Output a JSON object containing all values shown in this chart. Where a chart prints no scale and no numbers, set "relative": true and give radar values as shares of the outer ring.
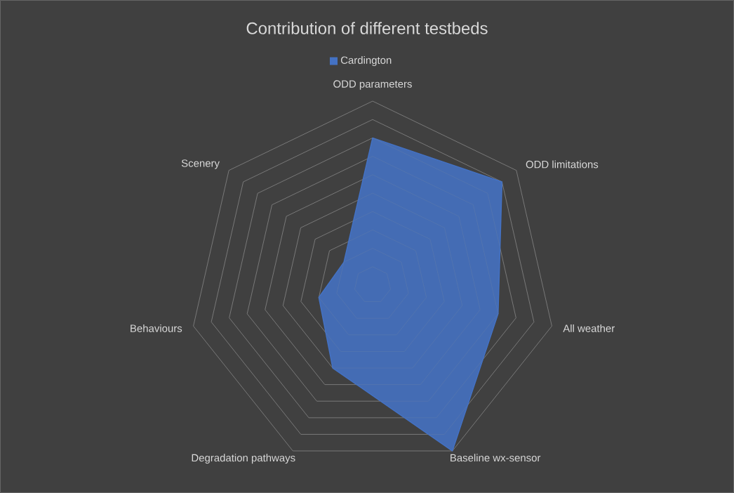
{
  "chart_data": {
    "type": "radar",
    "title": "Contribution of different testbeds",
    "categories": [
      "ODD parameters",
      "ODD limitations",
      "All weather",
      "Baseline wx-sensor",
      "Degradation pathways",
      "Behaviours",
      "Scenery"
    ],
    "relative": true,
    "grid": true,
    "legend": "top",
    "series": [
      {
        "name": "Cardington",
        "color": "#4472c4",
        "values": [
          0.8,
          0.9,
          0.7,
          1.0,
          0.5,
          0.3,
          0.2
        ]
      }
    ]
  }
}
